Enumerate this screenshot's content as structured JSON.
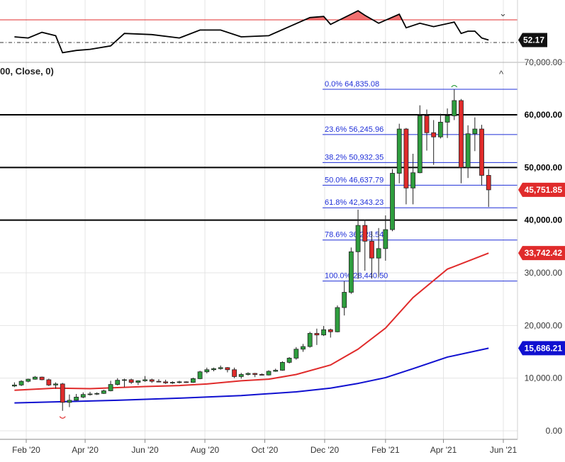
{
  "indicator_panel": {
    "value_label": "52.17",
    "collapse_glyph": "⌄"
  },
  "main_panel": {
    "header_label": "00, Close, 0)",
    "collapse_glyph": "^"
  },
  "colors": {
    "up": "#2e9e3e",
    "down": "#e02b2b",
    "fib": "#1f2fd8",
    "ma_short": "#e02b2b",
    "ma_long": "#1010d0",
    "rsi_line": "#000000",
    "rsi_fill": "#f07070"
  },
  "chart_data": {
    "type": "candlestick",
    "x_tick_labels": [
      "Feb '20",
      "Apr '20",
      "Jun '20",
      "Aug '20",
      "Oct '20",
      "Dec '20",
      "Feb '21",
      "Apr '21",
      "Jun '21"
    ],
    "y_tick_labels": [
      "70,000.00",
      "30,000.00",
      "20,000.00",
      "10,000.00",
      "0.00"
    ],
    "y_ticks": [
      70000,
      30000,
      20000,
      10000,
      0
    ],
    "horizontal_levels": [
      {
        "value": 60000,
        "label": "60,000.00"
      },
      {
        "value": 50000,
        "label": "50,000.00"
      },
      {
        "value": 40000,
        "label": "40,000.00"
      }
    ],
    "price_badges": [
      {
        "value": 45751.85,
        "label": "45,751.85",
        "color": "#e02b2b"
      },
      {
        "value": 33742.42,
        "label": "33,742.42",
        "color": "#e02b2b"
      },
      {
        "value": 15686.21,
        "label": "15,686.21",
        "color": "#1010d0"
      }
    ],
    "fibonacci": [
      {
        "label": "0.0% 64,835.08",
        "value": 64835.08
      },
      {
        "label": "23.6% 56,245.96",
        "value": 56245.96
      },
      {
        "label": "38.2% 50,932.35",
        "value": 50932.35
      },
      {
        "label": "50.0% 46,637.79",
        "value": 46637.79
      },
      {
        "label": "61.8% 42,343.23",
        "value": 42343.23
      },
      {
        "label": "78.6% 36,228.54",
        "value": 36228.54
      },
      {
        "label": "100.0% 28,440.50",
        "value": 28440.5
      }
    ],
    "candles": [
      {
        "date": "2020-01-20",
        "o": 8500,
        "h": 9200,
        "l": 8300,
        "c": 8700
      },
      {
        "date": "2020-01-27",
        "o": 8700,
        "h": 9600,
        "l": 8500,
        "c": 9400
      },
      {
        "date": "2020-02-03",
        "o": 9400,
        "h": 9900,
        "l": 9200,
        "c": 9800
      },
      {
        "date": "2020-02-10",
        "o": 9800,
        "h": 10400,
        "l": 9700,
        "c": 10200
      },
      {
        "date": "2020-02-17",
        "o": 10200,
        "h": 10300,
        "l": 9600,
        "c": 9700
      },
      {
        "date": "2020-02-24",
        "o": 9700,
        "h": 9900,
        "l": 8500,
        "c": 8700
      },
      {
        "date": "2020-03-02",
        "o": 8700,
        "h": 9200,
        "l": 8000,
        "c": 8900
      },
      {
        "date": "2020-03-09",
        "o": 8900,
        "h": 9100,
        "l": 3800,
        "c": 5400
      },
      {
        "date": "2020-03-16",
        "o": 5400,
        "h": 6900,
        "l": 4500,
        "c": 5800
      },
      {
        "date": "2020-03-23",
        "o": 5800,
        "h": 7000,
        "l": 5700,
        "c": 6400
      },
      {
        "date": "2020-03-30",
        "o": 6400,
        "h": 7300,
        "l": 6200,
        "c": 6900
      },
      {
        "date": "2020-04-06",
        "o": 6900,
        "h": 7400,
        "l": 6700,
        "c": 7000
      },
      {
        "date": "2020-04-13",
        "o": 7000,
        "h": 7300,
        "l": 6800,
        "c": 7100
      },
      {
        "date": "2020-04-20",
        "o": 7100,
        "h": 7800,
        "l": 7000,
        "c": 7600
      },
      {
        "date": "2020-04-27",
        "o": 7600,
        "h": 9500,
        "l": 7500,
        "c": 8800
      },
      {
        "date": "2020-05-04",
        "o": 8800,
        "h": 10000,
        "l": 8600,
        "c": 9600
      },
      {
        "date": "2020-05-11",
        "o": 9600,
        "h": 9900,
        "l": 8300,
        "c": 9700
      },
      {
        "date": "2020-05-18",
        "o": 9700,
        "h": 9900,
        "l": 8900,
        "c": 9200
      },
      {
        "date": "2020-05-25",
        "o": 9200,
        "h": 9600,
        "l": 8700,
        "c": 9500
      },
      {
        "date": "2020-06-01",
        "o": 9500,
        "h": 10400,
        "l": 9300,
        "c": 9700
      },
      {
        "date": "2020-06-08",
        "o": 9700,
        "h": 9900,
        "l": 9100,
        "c": 9400
      },
      {
        "date": "2020-06-15",
        "o": 9400,
        "h": 9800,
        "l": 9200,
        "c": 9300
      },
      {
        "date": "2020-06-22",
        "o": 9300,
        "h": 9700,
        "l": 8900,
        "c": 9100
      },
      {
        "date": "2020-06-29",
        "o": 9100,
        "h": 9400,
        "l": 8900,
        "c": 9200
      },
      {
        "date": "2020-07-06",
        "o": 9200,
        "h": 9500,
        "l": 9000,
        "c": 9300
      },
      {
        "date": "2020-07-13",
        "o": 9300,
        "h": 9400,
        "l": 9100,
        "c": 9200
      },
      {
        "date": "2020-07-20",
        "o": 9200,
        "h": 10100,
        "l": 9100,
        "c": 9900
      },
      {
        "date": "2020-07-27",
        "o": 9900,
        "h": 11400,
        "l": 9800,
        "c": 11200
      },
      {
        "date": "2020-08-03",
        "o": 11200,
        "h": 12000,
        "l": 10900,
        "c": 11600
      },
      {
        "date": "2020-08-10",
        "o": 11600,
        "h": 12000,
        "l": 11300,
        "c": 11800
      },
      {
        "date": "2020-08-17",
        "o": 11800,
        "h": 12400,
        "l": 11600,
        "c": 12000
      },
      {
        "date": "2020-08-24",
        "o": 12000,
        "h": 12100,
        "l": 11100,
        "c": 11600
      },
      {
        "date": "2020-08-31",
        "o": 11600,
        "h": 12000,
        "l": 10000,
        "c": 10300
      },
      {
        "date": "2020-09-07",
        "o": 10300,
        "h": 11000,
        "l": 9900,
        "c": 10700
      },
      {
        "date": "2020-09-14",
        "o": 10700,
        "h": 11100,
        "l": 10500,
        "c": 10900
      },
      {
        "date": "2020-09-21",
        "o": 10900,
        "h": 11000,
        "l": 10200,
        "c": 10700
      },
      {
        "date": "2020-09-28",
        "o": 10700,
        "h": 10900,
        "l": 10500,
        "c": 10600
      },
      {
        "date": "2020-10-05",
        "o": 10600,
        "h": 11500,
        "l": 10500,
        "c": 11300
      },
      {
        "date": "2020-10-12",
        "o": 11300,
        "h": 11800,
        "l": 11200,
        "c": 11500
      },
      {
        "date": "2020-10-19",
        "o": 11500,
        "h": 13200,
        "l": 11400,
        "c": 13000
      },
      {
        "date": "2020-10-26",
        "o": 13000,
        "h": 14000,
        "l": 12800,
        "c": 13800
      },
      {
        "date": "2020-11-02",
        "o": 13800,
        "h": 15900,
        "l": 13500,
        "c": 15500
      },
      {
        "date": "2020-11-09",
        "o": 15500,
        "h": 16500,
        "l": 15000,
        "c": 16000
      },
      {
        "date": "2020-11-16",
        "o": 16000,
        "h": 18800,
        "l": 15800,
        "c": 18500
      },
      {
        "date": "2020-11-23",
        "o": 18500,
        "h": 19400,
        "l": 16300,
        "c": 18200
      },
      {
        "date": "2020-11-30",
        "o": 18200,
        "h": 19900,
        "l": 18000,
        "c": 19200
      },
      {
        "date": "2020-12-07",
        "o": 19200,
        "h": 19400,
        "l": 17700,
        "c": 18800
      },
      {
        "date": "2020-12-14",
        "o": 18800,
        "h": 23800,
        "l": 18700,
        "c": 23400
      },
      {
        "date": "2020-12-21",
        "o": 23400,
        "h": 28400,
        "l": 21900,
        "c": 26300
      },
      {
        "date": "2020-12-28",
        "o": 26300,
        "h": 34800,
        "l": 26000,
        "c": 34000
      },
      {
        "date": "2021-01-04",
        "o": 34000,
        "h": 42000,
        "l": 28800,
        "c": 39000
      },
      {
        "date": "2021-01-11",
        "o": 39000,
        "h": 40100,
        "l": 30400,
        "c": 36000
      },
      {
        "date": "2021-01-18",
        "o": 36000,
        "h": 37900,
        "l": 28900,
        "c": 32800
      },
      {
        "date": "2021-01-25",
        "o": 32800,
        "h": 38500,
        "l": 29200,
        "c": 34600
      },
      {
        "date": "2021-02-01",
        "o": 34600,
        "h": 40900,
        "l": 32300,
        "c": 38200
      },
      {
        "date": "2021-02-08",
        "o": 38200,
        "h": 49700,
        "l": 37900,
        "c": 48900
      },
      {
        "date": "2021-02-15",
        "o": 48900,
        "h": 58300,
        "l": 47000,
        "c": 57300
      },
      {
        "date": "2021-02-22",
        "o": 57300,
        "h": 57500,
        "l": 43000,
        "c": 46100
      },
      {
        "date": "2021-03-01",
        "o": 46100,
        "h": 52600,
        "l": 43000,
        "c": 49000
      },
      {
        "date": "2021-03-08",
        "o": 49000,
        "h": 61800,
        "l": 48900,
        "c": 59800
      },
      {
        "date": "2021-03-15",
        "o": 59800,
        "h": 61000,
        "l": 53200,
        "c": 56600
      },
      {
        "date": "2021-03-22",
        "o": 56600,
        "h": 59000,
        "l": 50500,
        "c": 55800
      },
      {
        "date": "2021-03-29",
        "o": 55800,
        "h": 60200,
        "l": 55500,
        "c": 58600
      },
      {
        "date": "2021-04-05",
        "o": 58600,
        "h": 61200,
        "l": 55600,
        "c": 59800
      },
      {
        "date": "2021-04-12",
        "o": 59800,
        "h": 64835,
        "l": 59000,
        "c": 62700
      },
      {
        "date": "2021-04-19",
        "o": 62700,
        "h": 63000,
        "l": 47000,
        "c": 50000
      },
      {
        "date": "2021-04-26",
        "o": 50000,
        "h": 58000,
        "l": 48000,
        "c": 56400
      },
      {
        "date": "2021-05-03",
        "o": 56400,
        "h": 59500,
        "l": 53100,
        "c": 57300
      },
      {
        "date": "2021-05-10",
        "o": 57300,
        "h": 58100,
        "l": 46600,
        "c": 48500
      },
      {
        "date": "2021-05-17",
        "o": 48500,
        "h": 49700,
        "l": 42500,
        "c": 45751.85
      }
    ],
    "ma_short": [
      {
        "date": "2020-01-20",
        "v": 7700
      },
      {
        "date": "2020-03-02",
        "v": 8100
      },
      {
        "date": "2020-04-06",
        "v": 8000
      },
      {
        "date": "2020-05-04",
        "v": 8200
      },
      {
        "date": "2020-06-01",
        "v": 8400
      },
      {
        "date": "2020-07-06",
        "v": 8600
      },
      {
        "date": "2020-08-03",
        "v": 8900
      },
      {
        "date": "2020-09-07",
        "v": 9500
      },
      {
        "date": "2020-10-05",
        "v": 9800
      },
      {
        "date": "2020-11-02",
        "v": 10700
      },
      {
        "date": "2020-12-07",
        "v": 12500
      },
      {
        "date": "2021-01-04",
        "v": 15500
      },
      {
        "date": "2021-02-01",
        "v": 19500
      },
      {
        "date": "2021-03-01",
        "v": 25300
      },
      {
        "date": "2021-04-05",
        "v": 30700
      },
      {
        "date": "2021-05-17",
        "v": 33742.42
      }
    ],
    "ma_long": [
      {
        "date": "2020-01-20",
        "v": 5300
      },
      {
        "date": "2020-03-02",
        "v": 5500
      },
      {
        "date": "2020-05-04",
        "v": 5800
      },
      {
        "date": "2020-07-06",
        "v": 6200
      },
      {
        "date": "2020-09-07",
        "v": 6700
      },
      {
        "date": "2020-11-02",
        "v": 7400
      },
      {
        "date": "2020-12-07",
        "v": 8100
      },
      {
        "date": "2021-01-04",
        "v": 9000
      },
      {
        "date": "2021-02-01",
        "v": 10100
      },
      {
        "date": "2021-03-01",
        "v": 11800
      },
      {
        "date": "2021-04-05",
        "v": 14000
      },
      {
        "date": "2021-05-17",
        "v": 15686.21
      }
    ],
    "oscillator": {
      "current": 52.17,
      "threshold": 70,
      "midline": 50,
      "points": [
        {
          "date": "2020-01-20",
          "v": 55
        },
        {
          "date": "2020-02-03",
          "v": 54
        },
        {
          "date": "2020-02-17",
          "v": 59
        },
        {
          "date": "2020-03-02",
          "v": 56
        },
        {
          "date": "2020-03-09",
          "v": 41
        },
        {
          "date": "2020-03-23",
          "v": 43
        },
        {
          "date": "2020-04-06",
          "v": 44
        },
        {
          "date": "2020-04-27",
          "v": 47
        },
        {
          "date": "2020-05-11",
          "v": 58
        },
        {
          "date": "2020-06-08",
          "v": 57
        },
        {
          "date": "2020-07-06",
          "v": 54
        },
        {
          "date": "2020-07-27",
          "v": 61
        },
        {
          "date": "2020-08-17",
          "v": 61
        },
        {
          "date": "2020-09-07",
          "v": 55
        },
        {
          "date": "2020-10-05",
          "v": 56
        },
        {
          "date": "2020-10-26",
          "v": 64
        },
        {
          "date": "2020-11-16",
          "v": 72
        },
        {
          "date": "2020-11-30",
          "v": 73
        },
        {
          "date": "2020-12-07",
          "v": 66
        },
        {
          "date": "2020-12-28",
          "v": 75
        },
        {
          "date": "2021-01-04",
          "v": 78
        },
        {
          "date": "2021-01-11",
          "v": 74
        },
        {
          "date": "2021-01-25",
          "v": 67
        },
        {
          "date": "2021-02-15",
          "v": 75
        },
        {
          "date": "2021-02-22",
          "v": 63
        },
        {
          "date": "2021-03-08",
          "v": 67
        },
        {
          "date": "2021-03-22",
          "v": 64
        },
        {
          "date": "2021-04-12",
          "v": 68
        },
        {
          "date": "2021-04-19",
          "v": 58
        },
        {
          "date": "2021-04-26",
          "v": 60
        },
        {
          "date": "2021-05-03",
          "v": 60
        },
        {
          "date": "2021-05-10",
          "v": 54
        },
        {
          "date": "2021-05-17",
          "v": 52.17
        }
      ]
    }
  }
}
